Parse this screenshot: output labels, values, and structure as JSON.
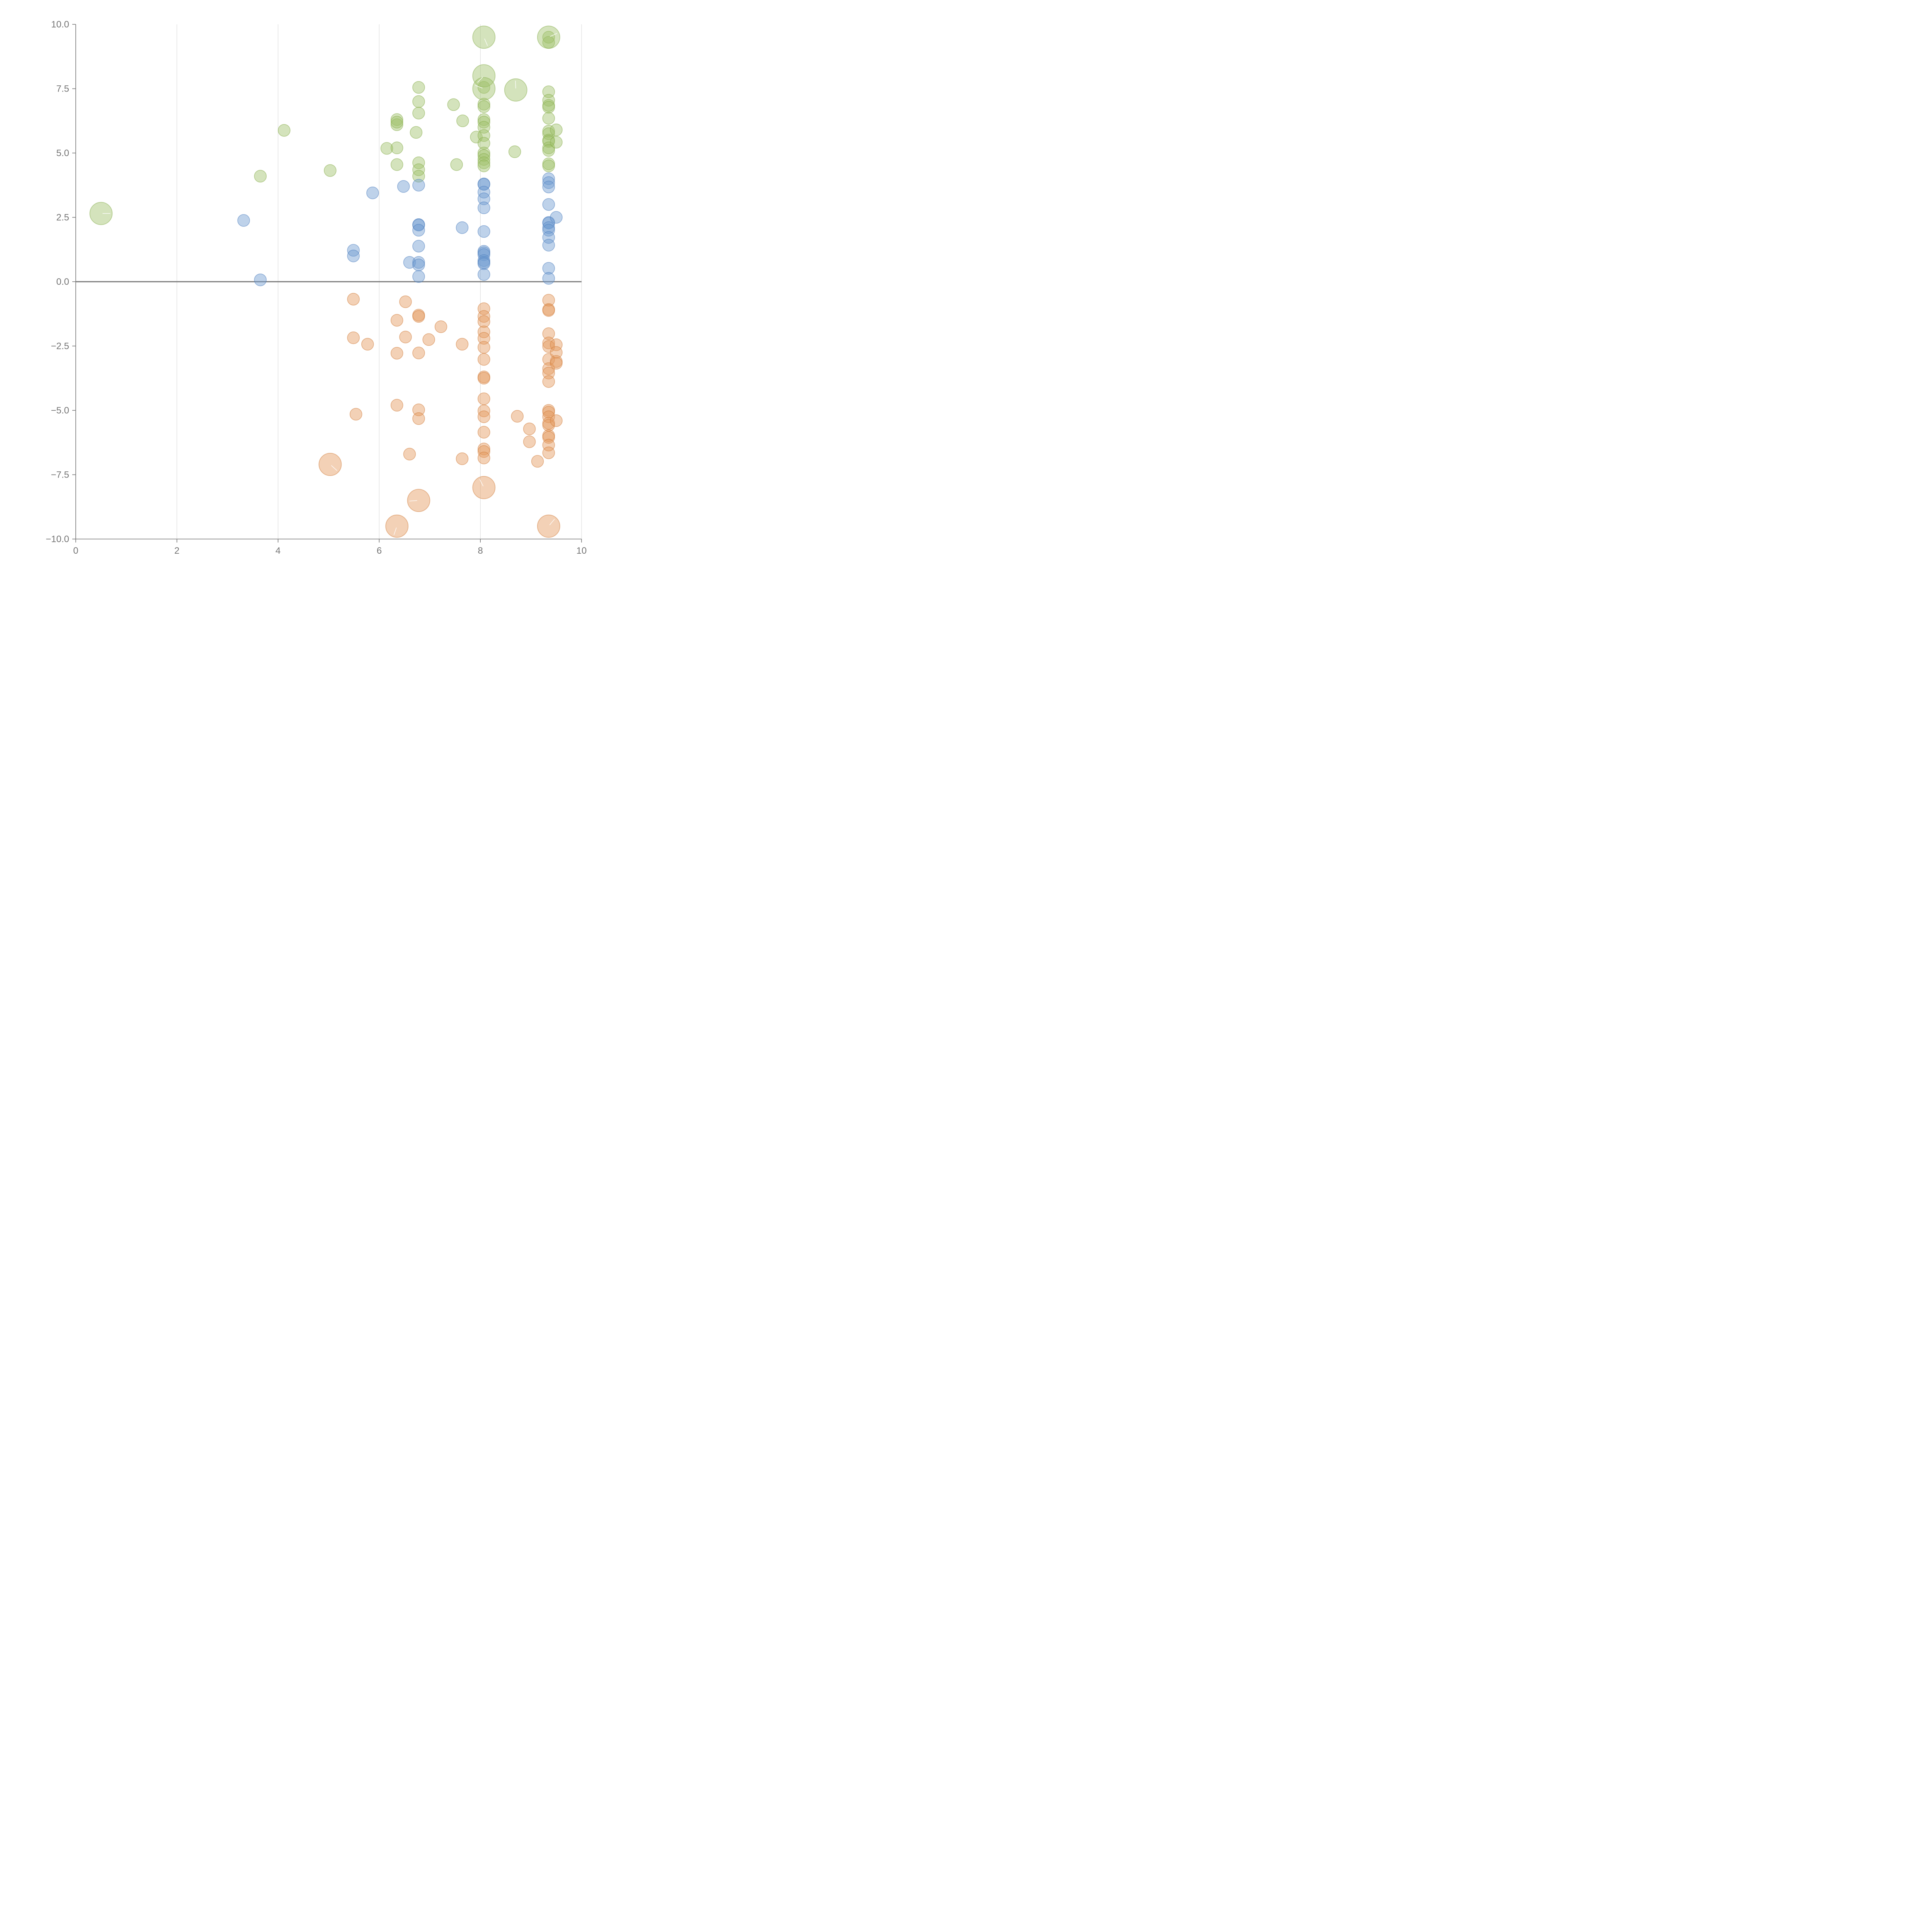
{
  "colors": {
    "neutral": "#6f9bd1",
    "positive": "#9fc26b",
    "negative": "#e49a5e",
    "neutral_stroke": "#4f7fc0",
    "positive_stroke": "#86ad4b",
    "negative_stroke": "#d27e3c"
  },
  "chart_data": {
    "type": "scatter",
    "title": "",
    "xlabel": "",
    "ylabel": "",
    "xlim": [
      0,
      10
    ],
    "ylim": [
      -10,
      10
    ],
    "grid": "vertical",
    "zero_line": true,
    "x_ticks": [
      "0",
      "2",
      "4",
      "6",
      "8",
      "10"
    ],
    "y_ticks": [
      "10.0",
      "7.5",
      "5.0",
      "2.5",
      "0.0",
      "−2.5",
      "−5.0",
      "−7.5",
      "−10.0"
    ],
    "series": [
      {
        "color_key": "positive",
        "points": [
          [
            3.65,
            4.1
          ],
          [
            4.12,
            5.88
          ],
          [
            5.03,
            4.32
          ],
          [
            6.15,
            5.18
          ],
          [
            6.35,
            5.2
          ],
          [
            6.35,
            4.55
          ],
          [
            6.35,
            6.3
          ],
          [
            6.35,
            6.1
          ],
          [
            6.35,
            6.2
          ],
          [
            6.73,
            5.8
          ],
          [
            6.78,
            7.55
          ],
          [
            6.78,
            7.0
          ],
          [
            6.78,
            6.55
          ],
          [
            6.78,
            4.62
          ],
          [
            6.78,
            4.35
          ],
          [
            6.78,
            4.1
          ],
          [
            7.47,
            6.88
          ],
          [
            7.53,
            4.55
          ],
          [
            7.65,
            6.25
          ],
          [
            7.92,
            5.62
          ],
          [
            8.07,
            7.55
          ],
          [
            8.07,
            6.9
          ],
          [
            8.07,
            6.8
          ],
          [
            8.07,
            6.3
          ],
          [
            8.07,
            6.2
          ],
          [
            8.07,
            6.0
          ],
          [
            8.07,
            5.68
          ],
          [
            8.07,
            5.38
          ],
          [
            8.07,
            5.0
          ],
          [
            8.07,
            4.9
          ],
          [
            8.07,
            4.75
          ],
          [
            8.07,
            4.62
          ],
          [
            8.07,
            4.5
          ],
          [
            8.68,
            5.05
          ],
          [
            9.35,
            9.5
          ],
          [
            9.35,
            9.3
          ],
          [
            9.35,
            7.38
          ],
          [
            9.35,
            7.05
          ],
          [
            9.35,
            6.85
          ],
          [
            9.35,
            6.78
          ],
          [
            9.35,
            6.35
          ],
          [
            9.35,
            5.85
          ],
          [
            9.35,
            5.75
          ],
          [
            9.35,
            5.5
          ],
          [
            9.35,
            5.45
          ],
          [
            9.35,
            5.2
          ],
          [
            9.35,
            5.1
          ],
          [
            9.35,
            4.58
          ],
          [
            9.35,
            4.5
          ],
          [
            9.5,
            5.9
          ],
          [
            9.5,
            5.42
          ]
        ]
      },
      {
        "color_key": "neutral",
        "points": [
          [
            3.32,
            2.38
          ],
          [
            3.65,
            0.07
          ],
          [
            5.49,
            1.22
          ],
          [
            5.49,
            1.0
          ],
          [
            5.87,
            3.45
          ],
          [
            6.48,
            3.7
          ],
          [
            6.6,
            0.75
          ],
          [
            6.78,
            3.75
          ],
          [
            6.78,
            2.22
          ],
          [
            6.78,
            2.2
          ],
          [
            6.78,
            2.0
          ],
          [
            6.78,
            1.38
          ],
          [
            6.78,
            0.75
          ],
          [
            6.78,
            0.65
          ],
          [
            6.78,
            0.2
          ],
          [
            7.64,
            2.1
          ],
          [
            8.07,
            3.8
          ],
          [
            8.07,
            3.78
          ],
          [
            8.07,
            3.48
          ],
          [
            8.07,
            3.22
          ],
          [
            8.07,
            2.87
          ],
          [
            8.07,
            1.95
          ],
          [
            8.07,
            1.18
          ],
          [
            8.07,
            1.12
          ],
          [
            8.07,
            1.05
          ],
          [
            8.07,
            0.82
          ],
          [
            8.07,
            0.75
          ],
          [
            8.07,
            0.7
          ],
          [
            8.07,
            0.28
          ],
          [
            9.35,
            4.0
          ],
          [
            9.35,
            3.85
          ],
          [
            9.35,
            3.68
          ],
          [
            9.35,
            3.0
          ],
          [
            9.35,
            2.3
          ],
          [
            9.35,
            2.28
          ],
          [
            9.35,
            2.1
          ],
          [
            9.35,
            2.0
          ],
          [
            9.35,
            1.72
          ],
          [
            9.35,
            1.42
          ],
          [
            9.35,
            0.52
          ],
          [
            9.35,
            0.13
          ],
          [
            9.5,
            2.5
          ]
        ]
      },
      {
        "color_key": "negative",
        "points": [
          [
            5.49,
            -0.68
          ],
          [
            5.49,
            -2.18
          ],
          [
            5.54,
            -5.15
          ],
          [
            5.77,
            -2.43
          ],
          [
            6.35,
            -1.5
          ],
          [
            6.35,
            -2.78
          ],
          [
            6.35,
            -4.8
          ],
          [
            6.52,
            -0.78
          ],
          [
            6.52,
            -2.15
          ],
          [
            6.6,
            -6.7
          ],
          [
            6.78,
            -1.3
          ],
          [
            6.78,
            -1.35
          ],
          [
            6.78,
            -2.77
          ],
          [
            6.78,
            -4.98
          ],
          [
            6.78,
            -5.32
          ],
          [
            6.98,
            -2.25
          ],
          [
            7.22,
            -1.75
          ],
          [
            7.64,
            -2.43
          ],
          [
            7.64,
            -6.88
          ],
          [
            8.07,
            -1.05
          ],
          [
            8.07,
            -1.35
          ],
          [
            8.07,
            -1.55
          ],
          [
            8.07,
            -1.95
          ],
          [
            8.07,
            -2.2
          ],
          [
            8.07,
            -2.55
          ],
          [
            8.07,
            -3.02
          ],
          [
            8.07,
            -3.7
          ],
          [
            8.07,
            -3.75
          ],
          [
            8.07,
            -4.55
          ],
          [
            8.07,
            -5.02
          ],
          [
            8.07,
            -5.25
          ],
          [
            8.07,
            -5.85
          ],
          [
            8.07,
            -6.5
          ],
          [
            8.07,
            -6.6
          ],
          [
            8.07,
            -6.85
          ],
          [
            8.73,
            -5.23
          ],
          [
            8.97,
            -5.72
          ],
          [
            8.97,
            -6.22
          ],
          [
            9.13,
            -6.98
          ],
          [
            9.35,
            -0.72
          ],
          [
            9.35,
            -1.08
          ],
          [
            9.35,
            -1.12
          ],
          [
            9.35,
            -2.02
          ],
          [
            9.35,
            -2.38
          ],
          [
            9.35,
            -2.52
          ],
          [
            9.35,
            -3.02
          ],
          [
            9.35,
            -3.38
          ],
          [
            9.35,
            -3.55
          ],
          [
            9.35,
            -3.88
          ],
          [
            9.35,
            -5.0
          ],
          [
            9.35,
            -5.07
          ],
          [
            9.35,
            -5.25
          ],
          [
            9.35,
            -5.5
          ],
          [
            9.35,
            -5.58
          ],
          [
            9.35,
            -5.98
          ],
          [
            9.35,
            -6.05
          ],
          [
            9.35,
            -6.35
          ],
          [
            9.35,
            -6.65
          ],
          [
            9.5,
            -2.45
          ],
          [
            9.5,
            -2.75
          ],
          [
            9.5,
            -3.1
          ],
          [
            9.5,
            -3.17
          ],
          [
            9.5,
            -5.4
          ]
        ]
      }
    ],
    "highlights": [
      {
        "x": 0.5,
        "y": 2.65,
        "color_key": "positive"
      },
      {
        "x": 8.07,
        "y": 9.5,
        "color_key": "positive"
      },
      {
        "x": 8.07,
        "y": 8.0,
        "color_key": "positive"
      },
      {
        "x": 8.07,
        "y": 7.5,
        "color_key": "positive"
      },
      {
        "x": 8.7,
        "y": 7.45,
        "color_key": "positive"
      },
      {
        "x": 9.35,
        "y": 9.5,
        "color_key": "positive"
      },
      {
        "x": 5.03,
        "y": -7.1,
        "color_key": "negative"
      },
      {
        "x": 6.35,
        "y": -9.5,
        "color_key": "negative"
      },
      {
        "x": 6.78,
        "y": -8.5,
        "color_key": "negative"
      },
      {
        "x": 8.07,
        "y": -8.0,
        "color_key": "negative"
      },
      {
        "x": 9.35,
        "y": -9.5,
        "color_key": "negative"
      }
    ]
  }
}
